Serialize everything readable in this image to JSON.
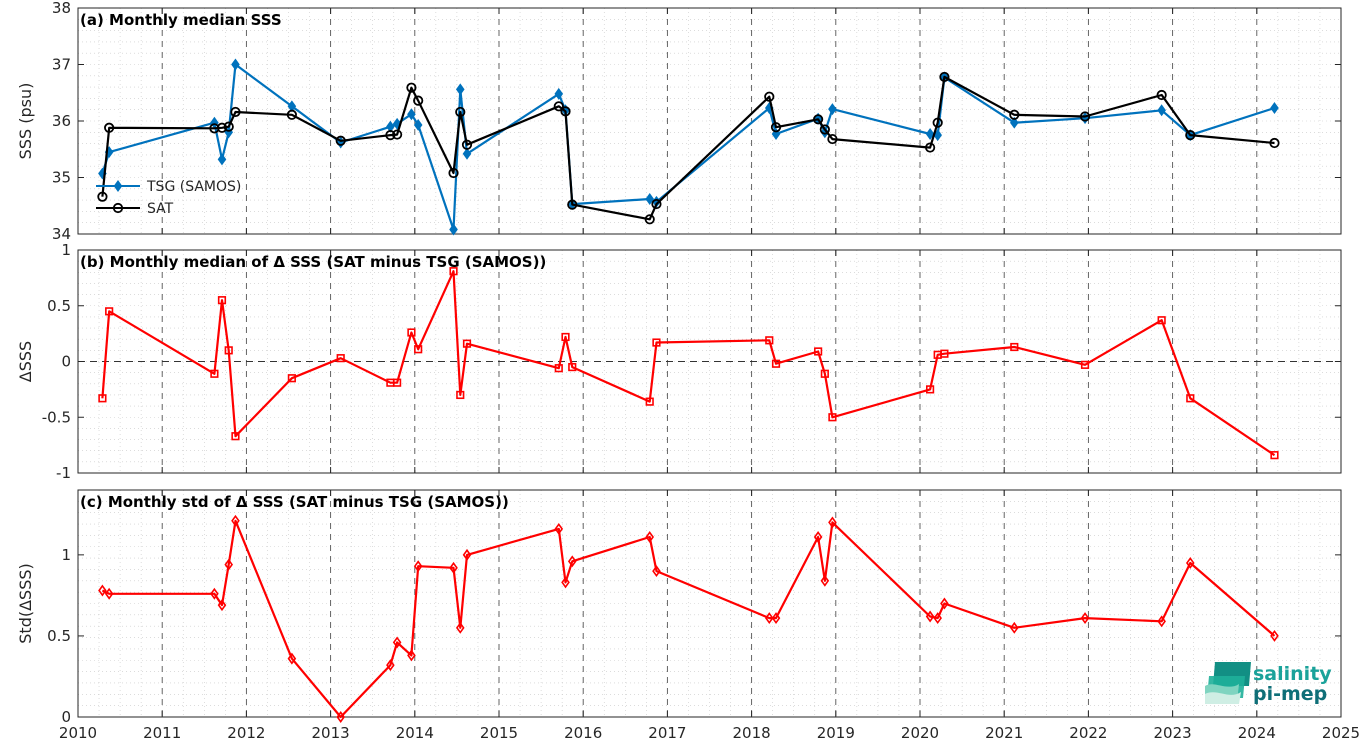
{
  "chart_data": [
    {
      "type": "line",
      "title": "(a) Monthly median SSS",
      "xlabel": "",
      "ylabel": "SSS (psu)",
      "xlim": [
        2010,
        2025
      ],
      "ylim": [
        34,
        38
      ],
      "xticks": [
        "2010",
        "2011",
        "2012",
        "2013",
        "2014",
        "2015",
        "2016",
        "2017",
        "2018",
        "2019",
        "2020",
        "2021",
        "2022",
        "2023",
        "2024",
        "2025"
      ],
      "yticks": [
        "34",
        "35",
        "36",
        "37",
        "38"
      ],
      "grid": true,
      "legend": "lower-left",
      "series": [
        {
          "name": "TSG (SAMOS)",
          "color": "#0072BD",
          "marker": "diamond",
          "x": [
            2010.29,
            2010.37,
            2011.62,
            2011.71,
            2011.79,
            2011.87,
            2012.54,
            2013.12,
            2013.71,
            2013.79,
            2013.96,
            2014.04,
            2014.46,
            2014.54,
            2014.62,
            2015.71,
            2015.79,
            2015.87,
            2016.79,
            2016.87,
            2018.21,
            2018.29,
            2018.79,
            2018.87,
            2018.96,
            2020.12,
            2020.21,
            2020.29,
            2021.12,
            2021.96,
            2022.87,
            2023.21,
            2024.21
          ],
          "y": [
            35.07,
            35.45,
            35.97,
            35.32,
            35.8,
            37.0,
            36.26,
            35.62,
            35.9,
            35.95,
            36.12,
            35.93,
            34.08,
            36.56,
            35.42,
            36.48,
            36.19,
            34.53,
            34.62,
            34.57,
            36.23,
            35.77,
            36.04,
            35.8,
            36.21,
            35.77,
            35.75,
            36.77,
            35.97,
            36.05,
            36.19,
            35.75,
            36.23
          ]
        },
        {
          "name": "SAT",
          "color": "#000000",
          "marker": "circle",
          "x": [
            2010.29,
            2010.37,
            2011.62,
            2011.71,
            2011.79,
            2011.87,
            2012.54,
            2013.12,
            2013.71,
            2013.79,
            2013.96,
            2014.04,
            2014.46,
            2014.54,
            2014.62,
            2015.71,
            2015.79,
            2015.87,
            2016.79,
            2016.87,
            2018.21,
            2018.29,
            2018.79,
            2018.87,
            2018.96,
            2020.12,
            2020.21,
            2020.29,
            2021.12,
            2021.96,
            2022.87,
            2023.21,
            2024.21
          ],
          "y": [
            34.66,
            35.88,
            35.87,
            35.88,
            35.9,
            36.16,
            36.11,
            35.65,
            35.75,
            35.76,
            36.59,
            36.36,
            35.08,
            36.16,
            35.58,
            36.26,
            36.17,
            34.52,
            34.26,
            34.53,
            36.43,
            35.89,
            36.03,
            35.85,
            35.68,
            35.53,
            35.97,
            36.78,
            36.11,
            36.08,
            36.46,
            35.75,
            35.61
          ]
        }
      ]
    },
    {
      "type": "line",
      "title": "(b) Monthly median of Δ SSS (SAT minus TSG (SAMOS))",
      "xlabel": "",
      "ylabel": "ΔSSS",
      "xlim": [
        2010,
        2025
      ],
      "ylim": [
        -1,
        1
      ],
      "yticks": [
        "-1",
        "-0.5",
        "0",
        "0.5",
        "1"
      ],
      "grid": true,
      "series": [
        {
          "color": "#FF0000",
          "marker": "square",
          "x": [
            2010.29,
            2010.37,
            2011.62,
            2011.71,
            2011.79,
            2011.87,
            2012.54,
            2013.12,
            2013.71,
            2013.79,
            2013.96,
            2014.04,
            2014.46,
            2014.54,
            2014.62,
            2015.71,
            2015.79,
            2015.87,
            2016.79,
            2016.87,
            2018.21,
            2018.29,
            2018.79,
            2018.87,
            2018.96,
            2020.12,
            2020.21,
            2020.29,
            2021.12,
            2021.96,
            2022.87,
            2023.21,
            2024.21
          ],
          "y": [
            -0.33,
            0.45,
            -0.11,
            0.55,
            0.1,
            -0.67,
            -0.15,
            0.03,
            -0.19,
            -0.19,
            0.26,
            0.11,
            0.81,
            -0.3,
            0.16,
            -0.06,
            0.22,
            -0.05,
            -0.36,
            0.17,
            0.19,
            -0.02,
            0.09,
            -0.11,
            -0.5,
            -0.25,
            0.06,
            0.07,
            0.13,
            -0.03,
            0.37,
            -0.33,
            -0.84
          ]
        }
      ]
    },
    {
      "type": "line",
      "title": "(c) Monthly std of Δ SSS (SAT minus TSG (SAMOS))",
      "xlabel": "",
      "ylabel": "Std(ΔSSS)",
      "xlim": [
        2010,
        2025
      ],
      "ylim": [
        0,
        1.4
      ],
      "yticks": [
        "0",
        "0.5",
        "1"
      ],
      "grid": true,
      "series": [
        {
          "color": "#FF0000",
          "marker": "diamond",
          "x": [
            2010.29,
            2010.37,
            2011.62,
            2011.71,
            2011.79,
            2011.87,
            2012.54,
            2013.12,
            2013.71,
            2013.79,
            2013.96,
            2014.04,
            2014.46,
            2014.54,
            2014.62,
            2015.71,
            2015.79,
            2015.87,
            2016.79,
            2016.87,
            2018.21,
            2018.29,
            2018.79,
            2018.87,
            2018.96,
            2020.12,
            2020.21,
            2020.29,
            2021.12,
            2021.96,
            2022.87,
            2023.21,
            2024.21
          ],
          "y": [
            0.78,
            0.76,
            0.76,
            0.69,
            0.94,
            1.21,
            0.36,
            0.0,
            0.32,
            0.46,
            0.38,
            0.93,
            0.92,
            0.55,
            1.0,
            1.16,
            0.83,
            0.96,
            1.11,
            0.9,
            0.61,
            0.61,
            1.11,
            0.84,
            1.2,
            0.62,
            0.61,
            0.7,
            0.55,
            0.61,
            0.59,
            0.95,
            0.5
          ]
        }
      ]
    }
  ],
  "logo": {
    "line1": "salinity",
    "line2": "pi-mep"
  }
}
